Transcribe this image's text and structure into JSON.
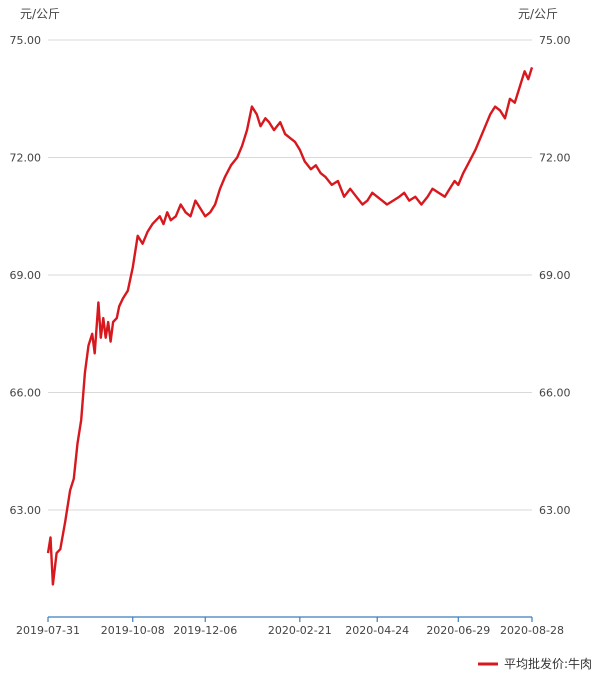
{
  "chart_data": {
    "type": "line",
    "y_unit_left": "元/公斤",
    "y_unit_right": "元/公斤",
    "ylim": [
      60.0,
      75.0
    ],
    "y_ticks": [
      "63.00",
      "66.00",
      "69.00",
      "72.00",
      "75.00"
    ],
    "y_tick_values": [
      63,
      66,
      69,
      72,
      75
    ],
    "x_ticks": [
      "2019-07-31",
      "2019-10-08",
      "2019-12-06",
      "2020-02-21",
      "2020-04-24",
      "2020-06-29",
      "2020-08-28"
    ],
    "x_tick_days": [
      0,
      69,
      128,
      205,
      268,
      334,
      394
    ],
    "x_range_days": [
      0,
      394
    ],
    "legend_position": "bottom-right",
    "color": "#d7191f",
    "grid": true,
    "series": [
      {
        "name": "平均批发价:牛肉",
        "x": [
          "2019-07-31",
          "2019-08-02",
          "2019-08-04",
          "2019-08-07",
          "2019-08-10",
          "2019-08-14",
          "2019-08-18",
          "2019-08-21",
          "2019-08-24",
          "2019-08-27",
          "2019-08-30",
          "2019-09-02",
          "2019-09-05",
          "2019-09-07",
          "2019-09-10",
          "2019-09-12",
          "2019-09-14",
          "2019-09-16",
          "2019-09-18",
          "2019-09-20",
          "2019-09-22",
          "2019-09-25",
          "2019-09-27",
          "2019-09-30",
          "2019-10-04",
          "2019-10-08",
          "2019-10-12",
          "2019-10-16",
          "2019-10-20",
          "2019-10-24",
          "2019-10-27",
          "2019-10-30",
          "2019-11-02",
          "2019-11-05",
          "2019-11-08",
          "2019-11-12",
          "2019-11-16",
          "2019-11-20",
          "2019-11-24",
          "2019-11-28",
          "2019-12-02",
          "2019-12-06",
          "2019-12-10",
          "2019-12-14",
          "2019-12-18",
          "2019-12-22",
          "2019-12-27",
          "2020-01-01",
          "2020-01-05",
          "2020-01-09",
          "2020-01-13",
          "2020-01-17",
          "2020-01-20",
          "2020-01-24",
          "2020-01-27",
          "2020-01-31",
          "2020-02-05",
          "2020-02-09",
          "2020-02-13",
          "2020-02-17",
          "2020-02-21",
          "2020-02-25",
          "2020-03-01",
          "2020-03-05",
          "2020-03-09",
          "2020-03-13",
          "2020-03-18",
          "2020-03-23",
          "2020-03-28",
          "2020-04-02",
          "2020-04-07",
          "2020-04-12",
          "2020-04-16",
          "2020-04-20",
          "2020-04-24",
          "2020-04-28",
          "2020-05-02",
          "2020-05-07",
          "2020-05-12",
          "2020-05-16",
          "2020-05-20",
          "2020-05-25",
          "2020-05-30",
          "2020-06-04",
          "2020-06-08",
          "2020-06-13",
          "2020-06-18",
          "2020-06-22",
          "2020-06-26",
          "2020-06-29",
          "2020-07-03",
          "2020-07-08",
          "2020-07-13",
          "2020-07-17",
          "2020-07-21",
          "2020-07-25",
          "2020-07-29",
          "2020-08-02",
          "2020-08-06",
          "2020-08-10",
          "2020-08-14",
          "2020-08-18",
          "2020-08-22",
          "2020-08-25",
          "2020-08-28"
        ],
        "values": [
          61.9,
          62.3,
          61.1,
          61.9,
          62.0,
          62.7,
          63.5,
          63.8,
          64.7,
          65.3,
          66.5,
          67.2,
          67.5,
          67.0,
          68.3,
          67.4,
          67.9,
          67.4,
          67.8,
          67.3,
          67.8,
          67.9,
          68.2,
          68.4,
          68.6,
          69.2,
          70.0,
          69.8,
          70.1,
          70.3,
          70.4,
          70.5,
          70.3,
          70.6,
          70.4,
          70.5,
          70.8,
          70.6,
          70.5,
          70.9,
          70.7,
          70.5,
          70.6,
          70.8,
          71.2,
          71.5,
          71.8,
          72.0,
          72.3,
          72.7,
          73.3,
          73.1,
          72.8,
          73.0,
          72.9,
          72.7,
          72.9,
          72.6,
          72.5,
          72.4,
          72.2,
          71.9,
          71.7,
          71.8,
          71.6,
          71.5,
          71.3,
          71.4,
          71.0,
          71.2,
          71.0,
          70.8,
          70.9,
          71.1,
          71.0,
          70.9,
          70.8,
          70.9,
          71.0,
          71.1,
          70.9,
          71.0,
          70.8,
          71.0,
          71.2,
          71.1,
          71.0,
          71.2,
          71.4,
          71.3,
          71.6,
          71.9,
          72.2,
          72.5,
          72.8,
          73.1,
          73.3,
          73.2,
          73.0,
          73.5,
          73.4,
          73.8,
          74.2,
          74.0,
          74.3
        ]
      }
    ]
  }
}
